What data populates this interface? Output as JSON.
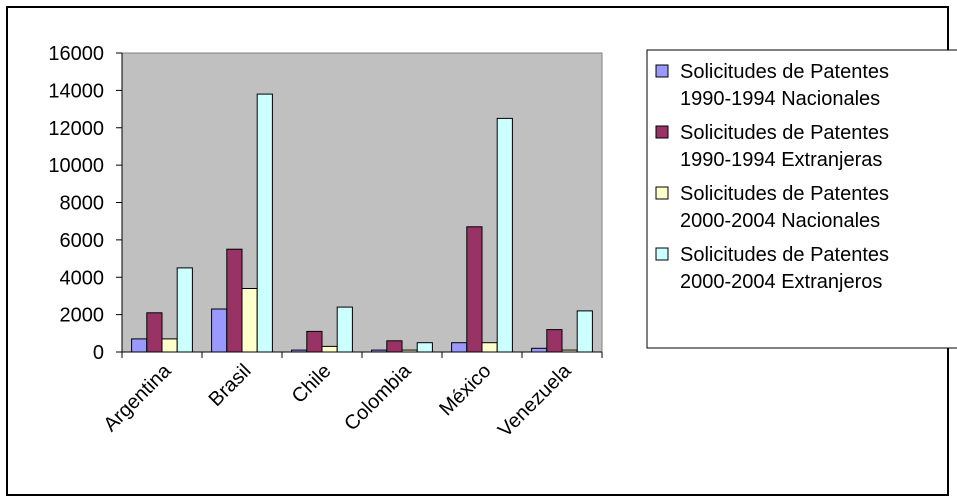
{
  "chart_data": {
    "type": "bar",
    "categories": [
      "Argentina",
      "Brasil",
      "Chile",
      "Colombia",
      "México",
      "Venezuela"
    ],
    "series": [
      {
        "name": "Solicitudes de Patentes 1990-1994 Nacionales",
        "legend_lines": [
          "Solicitudes de Patentes",
          "1990-1994 Nacionales"
        ],
        "color": "#9999FF",
        "values": [
          700,
          2300,
          100,
          100,
          500,
          200
        ]
      },
      {
        "name": "Solicitudes de Patentes 1990-1994 Extranjeras",
        "legend_lines": [
          "Solicitudes de Patentes",
          "1990-1994 Extranjeras"
        ],
        "color": "#993366",
        "values": [
          2100,
          5500,
          1100,
          600,
          6700,
          1200
        ]
      },
      {
        "name": "Solicitudes de Patentes 2000-2004 Nacionales",
        "legend_lines": [
          "Solicitudes de Patentes",
          "2000-2004 Nacionales"
        ],
        "color": "#FFFFCC",
        "values": [
          700,
          3400,
          300,
          100,
          500,
          100
        ]
      },
      {
        "name": "Solicitudes de Patentes 2000-2004 Extranjeros",
        "legend_lines": [
          "Solicitudes de Patentes",
          "2000-2004 Extranjeros"
        ],
        "color": "#CCFFFF",
        "values": [
          4500,
          13800,
          2400,
          500,
          12500,
          2200
        ]
      }
    ],
    "yticks": [
      "0",
      "2000",
      "4000",
      "6000",
      "8000",
      "10000",
      "12000",
      "14000",
      "16000"
    ],
    "ylim": [
      0,
      16000
    ],
    "plot_background": "#C0C0C0",
    "grid": false,
    "legend_position": "right"
  }
}
